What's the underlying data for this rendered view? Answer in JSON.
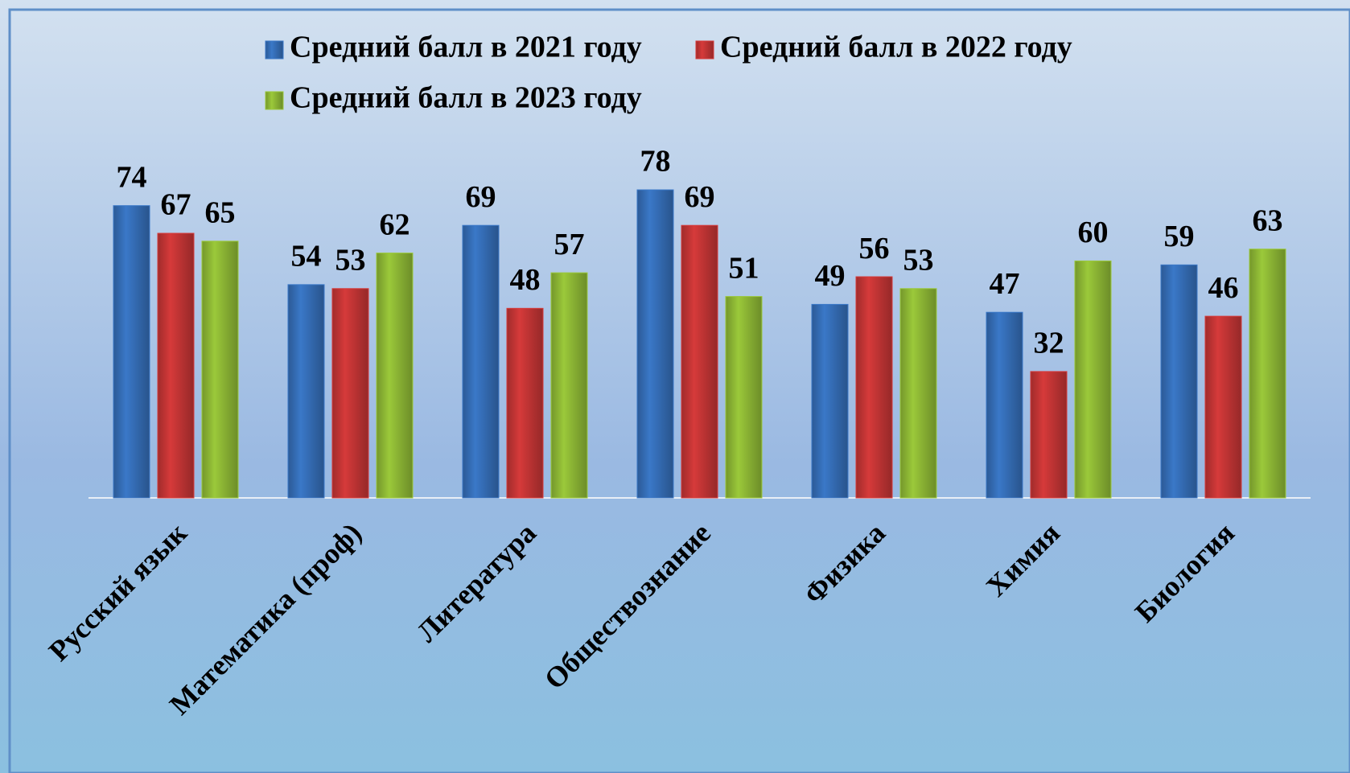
{
  "chart_data": {
    "type": "bar",
    "categories": [
      "Русский язык",
      "Математика (проф)",
      "Литература",
      "Обществознание",
      "Физика",
      "Химия",
      "Биология"
    ],
    "series": [
      {
        "name": "Средний балл в 2021 году",
        "color": "#3a78c8",
        "values": [
          74,
          54,
          69,
          78,
          49,
          47,
          59
        ]
      },
      {
        "name": "Средний балл в 2022 году",
        "color": "#d63a3a",
        "values": [
          67,
          53,
          48,
          69,
          56,
          32,
          46
        ]
      },
      {
        "name": "Средний балл в 2023 году",
        "color": "#9bc93a",
        "values": [
          65,
          62,
          57,
          51,
          53,
          60,
          63
        ]
      }
    ],
    "ylim": [
      0,
      100
    ],
    "grid": false,
    "legend": "top"
  }
}
